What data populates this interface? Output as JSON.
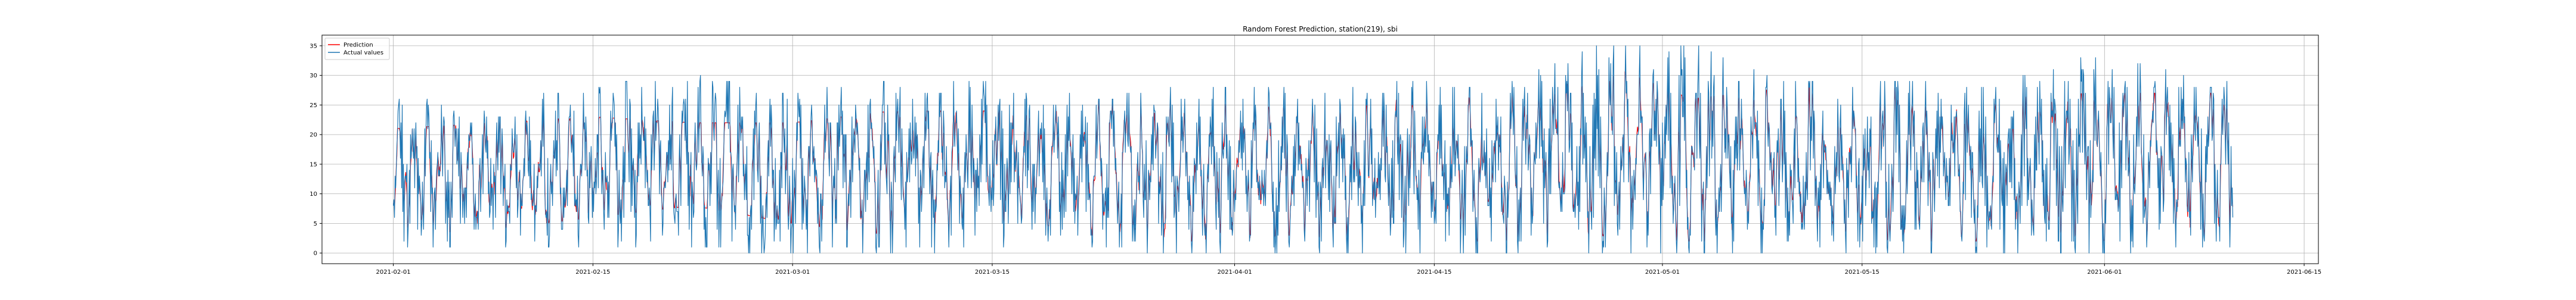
{
  "chart_data": {
    "type": "line",
    "title": "Random Forest Prediction, station(219), sbi",
    "xlabel": "",
    "ylabel": "",
    "x_range": [
      "2021-01-27",
      "2021-06-16"
    ],
    "ylim": [
      -1.8,
      36.8
    ],
    "grid": true,
    "legend_position": "top-left",
    "x_ticks": [
      "2021-02-01",
      "2021-02-15",
      "2021-03-01",
      "2021-03-15",
      "2021-04-01",
      "2021-04-15",
      "2021-05-01",
      "2021-05-15",
      "2021-06-01",
      "2021-06-15"
    ],
    "y_ticks": [
      0,
      5,
      10,
      15,
      20,
      25,
      30,
      35
    ],
    "data_start": "2021-02-01",
    "data_end": "2021-06-10",
    "sampling": "hourly",
    "series": [
      {
        "name": "Prediction",
        "color": "#ff0000",
        "weekly_envelope": [
          [
            3,
            21
          ],
          [
            4,
            22
          ],
          [
            6,
            23
          ],
          [
            8,
            22
          ],
          [
            5,
            22
          ],
          [
            3,
            24
          ],
          [
            3,
            24
          ],
          [
            3,
            26
          ],
          [
            2,
            26
          ],
          [
            3,
            26
          ],
          [
            2,
            27
          ],
          [
            2,
            26
          ],
          [
            3,
            33
          ],
          [
            2,
            26
          ],
          [
            2,
            28
          ],
          [
            2,
            28
          ],
          [
            2,
            26
          ],
          [
            2,
            27
          ],
          [
            3,
            27
          ],
          [
            2,
            27
          ],
          [
            3,
            25
          ],
          [
            3,
            20
          ],
          [
            4,
            23
          ],
          [
            4,
            24
          ],
          [
            6,
            22
          ],
          [
            5,
            23
          ],
          [
            6,
            24
          ],
          [
            6,
            23
          ],
          [
            6,
            23
          ]
        ]
      },
      {
        "name": "Actual values",
        "color": "#1f77b4",
        "weekly_envelope": [
          [
            1,
            26
          ],
          [
            1,
            25
          ],
          [
            1,
            28
          ],
          [
            1,
            30
          ],
          [
            0,
            27
          ],
          [
            0,
            29
          ],
          [
            1,
            29
          ],
          [
            1,
            26
          ],
          [
            0,
            28
          ],
          [
            0,
            28
          ],
          [
            0,
            29
          ],
          [
            0,
            28
          ],
          [
            0,
            35
          ],
          [
            0,
            35
          ],
          [
            0,
            29
          ],
          [
            0,
            29
          ],
          [
            0,
            28
          ],
          [
            0,
            34
          ],
          [
            1,
            30
          ],
          [
            0,
            34
          ],
          [
            1,
            27
          ],
          [
            2,
            23
          ],
          [
            2,
            24
          ],
          [
            1,
            25
          ],
          [
            0,
            26
          ],
          [
            1,
            25
          ],
          [
            3,
            25
          ],
          [
            3,
            26
          ],
          [
            5,
            28
          ]
        ]
      }
    ]
  }
}
